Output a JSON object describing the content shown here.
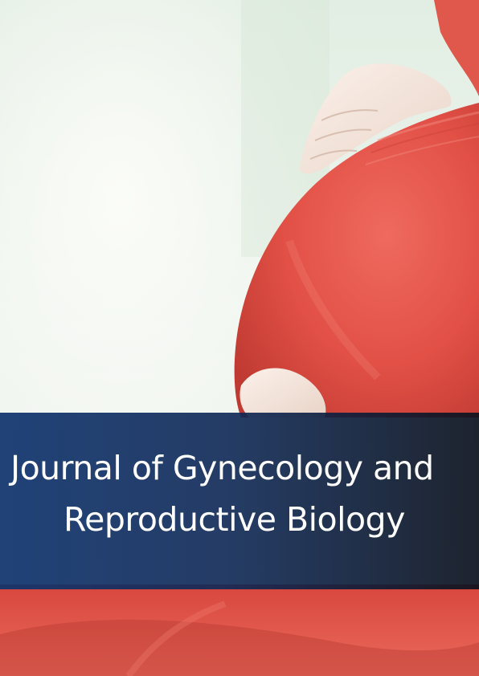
{
  "cover": {
    "image": "pregnant-belly-red-dress-photo",
    "colors": {
      "dress": "#e4534a",
      "background": "#eaf2ea",
      "band": "#10346e",
      "title": "#ffffff"
    },
    "title_line_1": "Journal of Gynecology and",
    "title_line_2": "Reproductive Biology"
  }
}
